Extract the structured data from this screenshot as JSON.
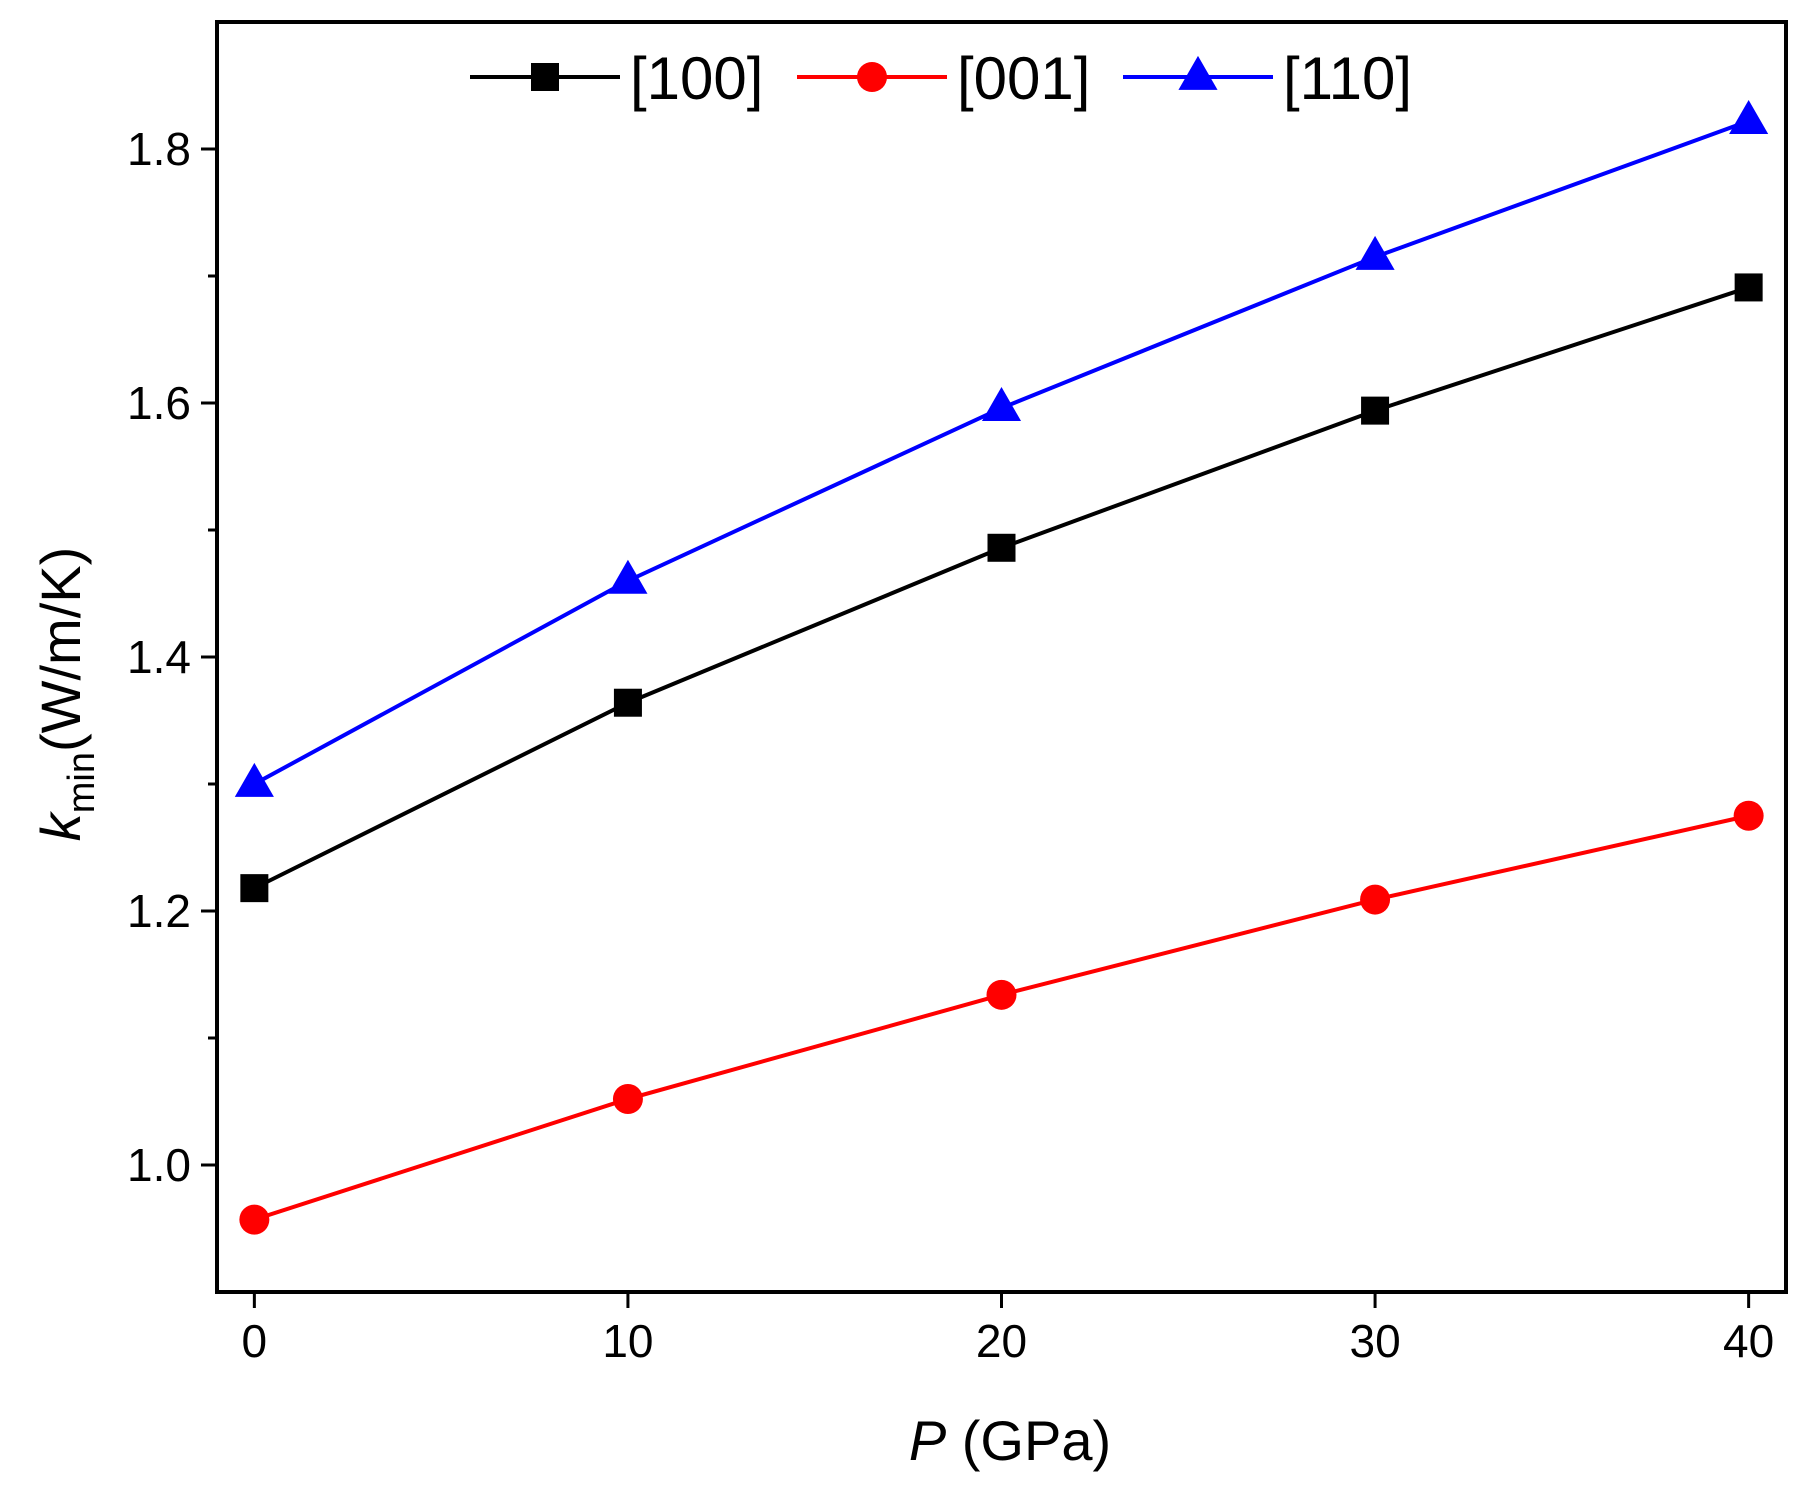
{
  "chart_data": {
    "type": "line",
    "title": "",
    "xlabel_var": "P",
    "xlabel_unit": " (GPa)",
    "ylabel_var": "k",
    "ylabel_sub": "min",
    "ylabel_unit": "(W/m/K)",
    "xlim": [
      -1,
      41
    ],
    "ylim": [
      0.9,
      1.9
    ],
    "xticks": [
      0,
      10,
      20,
      30,
      40
    ],
    "xtick_labels": [
      "0",
      "10",
      "20",
      "30",
      "40"
    ],
    "yticks": [
      1.0,
      1.2,
      1.4,
      1.6,
      1.8
    ],
    "ytick_labels": [
      "1.0",
      "1.2",
      "1.4",
      "1.6",
      "1.8"
    ],
    "yminor_ticks": [
      1.1,
      1.3,
      1.5,
      1.7
    ],
    "grid": false,
    "legend_position": "top-center",
    "x": [
      0,
      10,
      20,
      30,
      40
    ],
    "series": [
      {
        "name": "[100]",
        "color": "#000000",
        "marker": "square",
        "values": [
          1.218,
          1.364,
          1.486,
          1.594,
          1.691
        ]
      },
      {
        "name": "[001]",
        "color": "#ff0000",
        "marker": "circle",
        "values": [
          0.957,
          1.052,
          1.134,
          1.209,
          1.275
        ]
      },
      {
        "name": "[110]",
        "color": "#0000ff",
        "marker": "triangle",
        "values": [
          1.3,
          1.46,
          1.596,
          1.715,
          1.822
        ]
      }
    ]
  }
}
